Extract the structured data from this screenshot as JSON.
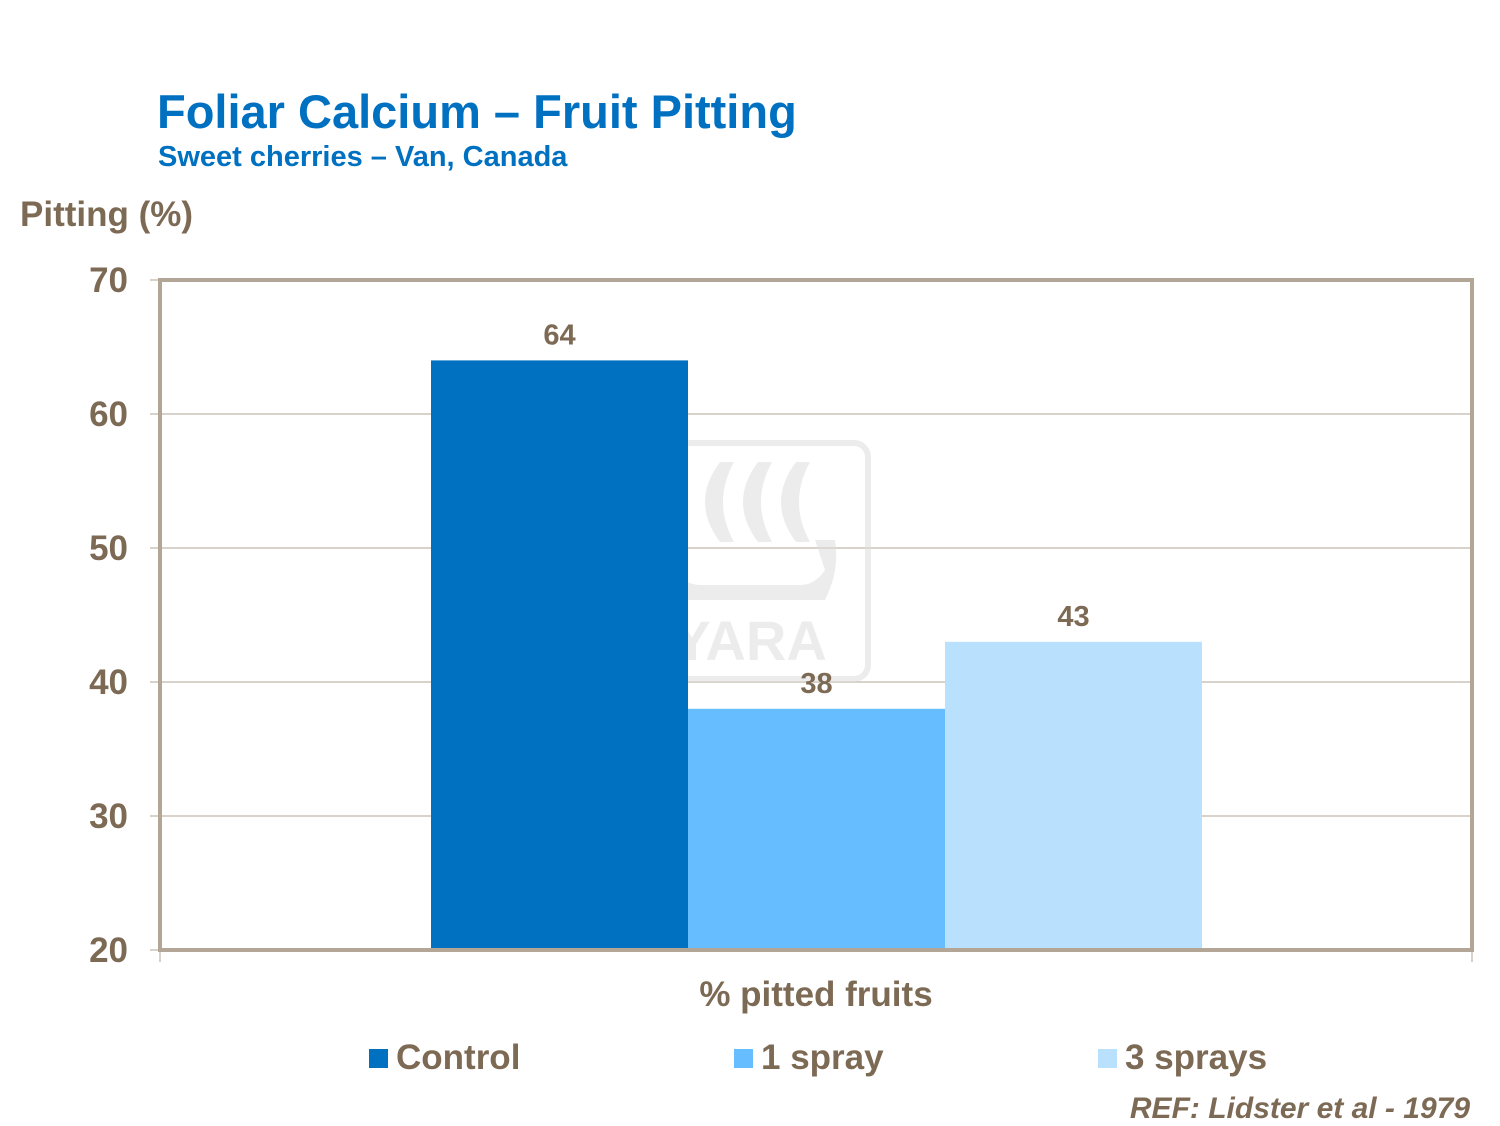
{
  "chart_data": {
    "type": "bar",
    "title": "Foliar Calcium – Fruit Pitting",
    "subtitle": "Sweet cherries – Van, Canada",
    "ylabel": "Pitting (%)",
    "xlabel": "% pitted fruits",
    "ylim": [
      20,
      70
    ],
    "yticks": [
      20,
      30,
      40,
      50,
      60,
      70
    ],
    "grid": true,
    "legend_placement": "bottom",
    "categories": [
      "% pitted fruits"
    ],
    "series": [
      {
        "name": "Control",
        "values": [
          64
        ],
        "color": "#0070c0"
      },
      {
        "name": "1 spray",
        "values": [
          38
        ],
        "color": "#66bdff"
      },
      {
        "name": "3 sprays",
        "values": [
          43
        ],
        "color": "#b9e0fd"
      }
    ],
    "annotations": [
      "REF:  Lidster et al - 1979"
    ],
    "watermark": "YARA"
  },
  "colors": {
    "title": "#0070c0",
    "text": "#7d6a55",
    "axis": "#b3a697"
  }
}
